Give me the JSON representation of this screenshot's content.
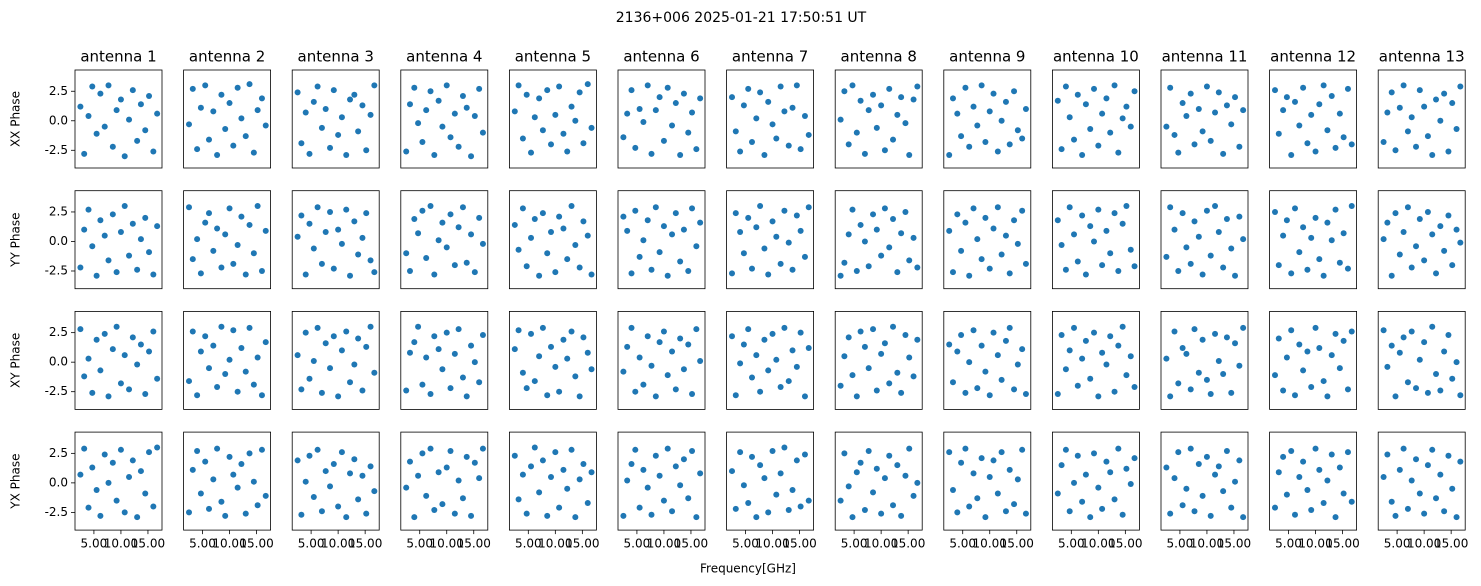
{
  "chart_data": {
    "type": "scatter",
    "title": "2136+006 2025-01-21 17:50:51 UT",
    "xlabel": "Frequency[GHz]",
    "columns": [
      "antenna 1",
      "antenna 2",
      "antenna 3",
      "antenna 4",
      "antenna 5",
      "antenna 6",
      "antenna 7",
      "antenna 8",
      "antenna 9",
      "antenna 10",
      "antenna 11",
      "antenna 12",
      "antenna 13"
    ],
    "rows": [
      "XX Phase",
      "YY Phase",
      "XY Phase",
      "YX Phase"
    ],
    "color": "#1f77b4",
    "xlim": [
      1.5,
      17.6
    ],
    "xticks": [
      {
        "value": 5,
        "label": "5.00"
      },
      {
        "value": 10,
        "label": "10.00"
      },
      {
        "value": 15,
        "label": "15.00"
      }
    ],
    "ylim": [
      -4.0,
      4.3
    ],
    "yticks": [
      -2.5,
      {
        "value": 0,
        "label": "0.0"
      },
      2.5
    ],
    "x": [
      2.5,
      3.2,
      4.0,
      4.7,
      5.5,
      6.2,
      7.0,
      7.7,
      8.5,
      9.2,
      10.0,
      10.7,
      11.5,
      12.2,
      13.0,
      13.7,
      14.5,
      15.2,
      16.0,
      16.7
    ],
    "panels": [
      [
        [
          1.2,
          -2.8,
          0.4,
          2.9,
          -1.1,
          2.3,
          -0.5,
          3.0,
          -2.2,
          0.9,
          1.8,
          -3.0,
          0.1,
          2.6,
          -1.7,
          1.4,
          -0.8,
          2.1,
          -2.6,
          0.6
        ],
        [
          -0.3,
          2.7,
          -2.4,
          1.1,
          3.0,
          -1.6,
          0.8,
          -2.9,
          2.2,
          -0.7,
          1.5,
          -2.1,
          2.8,
          0.2,
          -1.3,
          3.1,
          -2.7,
          0.9,
          1.9,
          -0.4
        ],
        [
          2.4,
          -1.9,
          0.7,
          -2.8,
          1.6,
          2.9,
          -0.6,
          1.0,
          -2.3,
          2.6,
          -1.2,
          0.3,
          -2.9,
          1.8,
          2.2,
          -0.9,
          1.3,
          -2.5,
          0.5,
          3.0
        ],
        [
          -2.6,
          1.4,
          2.8,
          -0.2,
          -1.8,
          0.9,
          2.5,
          -2.9,
          1.7,
          -0.5,
          3.0,
          -1.4,
          0.6,
          -2.2,
          2.1,
          1.1,
          -3.0,
          0.4,
          2.7,
          -1.0
        ],
        [
          0.8,
          3.0,
          -1.5,
          2.2,
          -2.7,
          0.3,
          1.9,
          -0.8,
          2.6,
          -2.0,
          0.5,
          2.9,
          -1.1,
          -2.6,
          1.2,
          0.0,
          2.4,
          -1.9,
          3.1,
          -0.6
        ],
        [
          -1.4,
          0.6,
          2.6,
          -2.3,
          1.0,
          -0.1,
          3.0,
          -2.8,
          0.9,
          2.0,
          -1.7,
          2.8,
          -0.4,
          1.5,
          -2.9,
          2.3,
          -1.0,
          0.7,
          -2.4,
          1.9
        ],
        [
          2.0,
          -0.9,
          -2.6,
          1.3,
          2.7,
          -1.8,
          0.2,
          2.4,
          -2.9,
          1.6,
          -0.3,
          -1.5,
          2.9,
          0.8,
          -2.1,
          1.1,
          3.0,
          -2.4,
          0.4,
          -1.2
        ],
        [
          0.1,
          2.5,
          -2.0,
          3.0,
          -1.0,
          1.7,
          -2.8,
          0.9,
          2.2,
          -0.6,
          1.3,
          -2.5,
          2.7,
          -1.6,
          0.5,
          2.0,
          -0.2,
          -2.9,
          1.8,
          2.9
        ],
        [
          -2.9,
          1.9,
          0.6,
          -1.3,
          2.8,
          -2.2,
          1.2,
          -0.4,
          3.0,
          -1.8,
          0.8,
          2.3,
          -2.6,
          0.0,
          1.6,
          -2.0,
          2.5,
          -0.8,
          -1.5,
          1.0
        ],
        [
          1.7,
          -2.4,
          2.9,
          0.3,
          -1.6,
          2.2,
          -2.9,
          1.4,
          -0.7,
          2.7,
          -2.1,
          0.6,
          1.9,
          -1.0,
          3.0,
          -2.7,
          0.2,
          1.2,
          -0.5,
          2.5
        ],
        [
          -0.5,
          2.8,
          -1.2,
          -2.7,
          1.5,
          0.4,
          2.3,
          -2.0,
          1.0,
          -0.9,
          2.9,
          -1.7,
          0.7,
          2.4,
          -2.8,
          1.3,
          -0.3,
          2.0,
          -2.2,
          0.9
        ],
        [
          2.6,
          -1.1,
          0.9,
          2.0,
          -2.9,
          1.6,
          -0.4,
          2.8,
          -1.9,
          0.5,
          -2.6,
          1.4,
          3.0,
          -0.8,
          2.1,
          -2.3,
          0.6,
          -1.4,
          2.7,
          -2.0
        ],
        [
          -1.8,
          0.7,
          2.4,
          -2.5,
          1.1,
          3.0,
          -0.9,
          0.3,
          -2.2,
          2.6,
          1.2,
          -1.3,
          -2.9,
          1.8,
          0.0,
          2.3,
          -2.6,
          1.5,
          -0.7,
          2.9
        ]
      ],
      [
        [
          -2.2,
          1.0,
          2.7,
          -0.4,
          -2.9,
          1.8,
          0.5,
          -1.6,
          2.3,
          -2.6,
          0.8,
          3.0,
          -1.2,
          1.5,
          -2.4,
          0.2,
          2.0,
          -0.9,
          -2.8,
          1.3
        ],
        [
          2.9,
          -1.5,
          0.2,
          -2.7,
          1.6,
          2.4,
          -0.8,
          1.1,
          -2.2,
          0.6,
          2.8,
          -1.9,
          -0.3,
          2.1,
          -2.8,
          1.4,
          -1.0,
          3.0,
          -2.5,
          0.9
        ],
        [
          0.4,
          2.2,
          -2.8,
          1.5,
          -0.6,
          2.9,
          -1.9,
          0.8,
          2.5,
          -2.3,
          1.0,
          -0.2,
          2.7,
          -2.9,
          1.7,
          -1.1,
          0.3,
          2.4,
          -1.6,
          -2.6
        ],
        [
          -1.0,
          -2.5,
          1.9,
          0.7,
          2.6,
          -1.4,
          3.0,
          -2.8,
          0.1,
          1.6,
          -0.5,
          2.3,
          -2.0,
          1.2,
          2.9,
          -1.8,
          0.6,
          -2.6,
          2.0,
          -0.2
        ],
        [
          1.4,
          -0.7,
          2.8,
          -2.1,
          0.3,
          1.9,
          -2.9,
          2.4,
          -1.0,
          0.8,
          -2.6,
          2.1,
          1.1,
          -1.5,
          3.0,
          -0.3,
          -2.2,
          1.7,
          0.5,
          -2.8
        ],
        [
          2.1,
          0.9,
          -2.7,
          2.6,
          -1.3,
          0.1,
          1.8,
          -2.4,
          2.9,
          -0.9,
          1.3,
          -2.9,
          0.6,
          2.4,
          -1.7,
          1.0,
          -2.5,
          2.8,
          -0.4,
          1.6
        ],
        [
          -2.7,
          2.4,
          0.8,
          -1.0,
          2.0,
          -2.3,
          1.2,
          3.0,
          -0.6,
          -2.8,
          1.7,
          0.4,
          -1.9,
          2.6,
          -0.1,
          -2.4,
          2.2,
          0.9,
          -1.3,
          2.9
        ],
        [
          -2.9,
          -1.8,
          0.6,
          2.7,
          -2.5,
          1.4,
          0.0,
          -2.1,
          2.3,
          1.0,
          -1.2,
          2.8,
          -0.5,
          1.9,
          -2.6,
          0.7,
          2.5,
          -1.6,
          0.3,
          -2.2
        ],
        [
          0.9,
          -2.6,
          2.3,
          -0.8,
          1.6,
          -2.9,
          2.8,
          0.2,
          -1.5,
          2.0,
          -2.3,
          1.1,
          2.9,
          -1.1,
          0.5,
          -2.7,
          1.8,
          -0.2,
          2.6,
          -1.9
        ],
        [
          1.8,
          -0.3,
          -2.4,
          2.9,
          0.6,
          -1.7,
          2.2,
          -2.8,
          1.3,
          0.0,
          2.7,
          -2.0,
          0.9,
          -1.0,
          2.4,
          -2.5,
          1.5,
          3.0,
          -0.7,
          -2.1
        ],
        [
          -1.3,
          2.9,
          1.0,
          -2.5,
          2.4,
          -0.5,
          -1.9,
          1.7,
          0.4,
          -2.8,
          2.6,
          -1.2,
          3.0,
          0.8,
          -2.2,
          1.9,
          -0.6,
          -2.9,
          2.1,
          0.2
        ],
        [
          2.5,
          -2.0,
          0.5,
          1.8,
          -2.7,
          2.8,
          -0.9,
          1.2,
          -2.4,
          0.3,
          2.0,
          -1.5,
          -2.9,
          1.6,
          0.1,
          2.7,
          -1.8,
          0.7,
          -2.3,
          3.0
        ],
        [
          0.2,
          1.6,
          -2.9,
          2.4,
          -1.1,
          0.8,
          2.9,
          -2.2,
          -0.4,
          1.9,
          -1.6,
          2.5,
          0.6,
          -2.7,
          1.3,
          -0.8,
          2.2,
          -2.0,
          1.0,
          -0.1
        ]
      ],
      [
        [
          2.8,
          -1.2,
          0.3,
          -2.6,
          1.9,
          -0.7,
          2.4,
          -2.9,
          1.1,
          3.0,
          -1.8,
          0.6,
          -2.3,
          2.1,
          -0.2,
          1.5,
          -2.7,
          0.9,
          2.6,
          -1.4
        ],
        [
          -1.6,
          2.6,
          -2.8,
          0.9,
          2.2,
          -0.5,
          1.4,
          -2.1,
          3.0,
          -1.0,
          0.2,
          2.7,
          -2.5,
          1.2,
          -0.8,
          2.9,
          -1.9,
          0.4,
          -2.8,
          1.7
        ],
        [
          0.6,
          -2.3,
          2.5,
          -1.4,
          0.1,
          2.9,
          -2.6,
          1.6,
          -0.5,
          2.2,
          -2.9,
          1.0,
          2.6,
          -1.7,
          -0.2,
          2.0,
          -2.4,
          1.3,
          3.0,
          -0.9
        ],
        [
          -2.4,
          0.8,
          1.7,
          3.0,
          -1.9,
          0.4,
          -2.7,
          2.2,
          1.1,
          -0.6,
          2.5,
          -2.2,
          0.7,
          2.8,
          -1.3,
          -2.9,
          1.4,
          0.0,
          -1.7,
          2.3
        ],
        [
          1.1,
          2.7,
          -0.9,
          -2.2,
          2.4,
          -1.6,
          0.5,
          2.9,
          -2.8,
          1.3,
          -0.4,
          -2.5,
          1.9,
          0.3,
          2.6,
          -1.2,
          -2.9,
          2.1,
          0.8,
          -0.6
        ],
        [
          -0.8,
          1.3,
          2.9,
          -2.5,
          0.4,
          -1.9,
          2.2,
          -0.3,
          -2.9,
          1.7,
          2.6,
          -1.1,
          0.9,
          -2.3,
          2.0,
          -0.6,
          1.5,
          -2.7,
          2.8,
          0.1
        ],
        [
          2.2,
          -2.8,
          -0.1,
          1.5,
          2.8,
          -1.3,
          0.6,
          -2.5,
          1.9,
          -0.7,
          2.4,
          0.2,
          -2.1,
          2.9,
          -1.6,
          1.0,
          -0.4,
          2.5,
          -2.9,
          1.2
        ],
        [
          -2.0,
          0.5,
          2.1,
          -1.1,
          -2.9,
          2.6,
          1.3,
          -0.5,
          2.8,
          -2.4,
          0.7,
          1.6,
          -1.8,
          3.0,
          -0.9,
          -2.6,
          2.3,
          0.4,
          -1.2,
          1.9
        ],
        [
          1.5,
          -1.7,
          0.9,
          2.3,
          -2.6,
          0.0,
          2.7,
          -2.2,
          1.4,
          -0.8,
          -2.8,
          2.5,
          0.6,
          -1.5,
          1.8,
          2.9,
          -2.3,
          -0.2,
          1.1,
          -2.7
        ],
        [
          -2.7,
          2.3,
          -0.6,
          1.0,
          2.9,
          -2.0,
          0.3,
          1.8,
          -1.4,
          2.5,
          -2.9,
          0.8,
          -0.2,
          2.2,
          -2.5,
          1.4,
          3.0,
          -1.1,
          0.5,
          -2.1
        ],
        [
          0.3,
          -2.9,
          2.6,
          -1.8,
          1.2,
          0.7,
          -2.3,
          2.8,
          -0.9,
          1.9,
          -1.5,
          -2.7,
          2.4,
          0.1,
          -1.0,
          2.1,
          -2.6,
          1.6,
          -0.3,
          2.9
        ],
        [
          -1.1,
          2.0,
          -2.4,
          0.4,
          2.7,
          -2.8,
          1.5,
          -0.7,
          0.9,
          -2.1,
          2.9,
          1.2,
          -1.6,
          -2.9,
          0.6,
          2.4,
          -0.5,
          1.8,
          -2.3,
          2.6
        ],
        [
          2.7,
          -0.4,
          1.4,
          -2.9,
          0.8,
          2.1,
          -1.7,
          2.6,
          -2.2,
          0.2,
          1.7,
          -2.6,
          3.0,
          -1.0,
          -2.4,
          0.9,
          2.3,
          -1.4,
          0.0,
          -2.8
        ]
      ],
      [
        [
          0.7,
          2.9,
          -2.1,
          1.3,
          -0.6,
          -2.8,
          2.4,
          0.0,
          1.7,
          -1.5,
          2.8,
          -2.5,
          0.5,
          1.9,
          -2.9,
          1.0,
          -0.9,
          2.6,
          -2.0,
          3.0
        ],
        [
          -2.5,
          1.1,
          2.7,
          -0.9,
          1.8,
          -2.2,
          0.3,
          2.9,
          -1.6,
          -2.8,
          2.2,
          0.7,
          -0.4,
          1.6,
          -2.6,
          2.5,
          0.1,
          -1.9,
          2.8,
          -1.1
        ],
        [
          1.9,
          -2.7,
          0.1,
          2.3,
          -1.2,
          2.8,
          -2.4,
          1.0,
          -0.3,
          1.6,
          -2.0,
          2.6,
          -2.9,
          0.8,
          2.0,
          -1.4,
          0.6,
          -2.6,
          1.4,
          -0.7
        ],
        [
          -0.4,
          1.8,
          -2.9,
          0.6,
          2.5,
          -1.1,
          2.9,
          -2.3,
          0.9,
          -1.8,
          1.3,
          2.7,
          -2.6,
          0.2,
          -1.3,
          2.2,
          -2.8,
          1.7,
          0.4,
          2.9
        ],
        [
          2.3,
          -1.4,
          0.7,
          -2.6,
          1.4,
          3.0,
          -0.8,
          1.9,
          -2.8,
          0.5,
          2.6,
          -2.1,
          1.1,
          -0.5,
          2.8,
          -2.9,
          0.3,
          1.6,
          -1.7,
          0.9
        ],
        [
          -2.8,
          0.2,
          1.6,
          2.8,
          -2.1,
          1.1,
          -0.4,
          -2.7,
          2.3,
          0.6,
          -1.5,
          2.9,
          -2.4,
          1.4,
          -0.2,
          2.0,
          -1.3,
          2.7,
          -2.9,
          0.8
        ],
        [
          1.0,
          -2.2,
          2.6,
          -0.2,
          -1.7,
          2.2,
          -2.9,
          1.5,
          0.4,
          -2.5,
          2.7,
          -1.0,
          0.8,
          3.0,
          -2.3,
          -0.6,
          1.9,
          -2.0,
          2.4,
          -1.5
        ],
        [
          -1.5,
          2.5,
          -0.3,
          -2.9,
          0.9,
          1.7,
          -2.3,
          2.7,
          -0.8,
          1.2,
          -2.6,
          0.4,
          2.3,
          -1.9,
          1.5,
          -2.8,
          0.6,
          2.9,
          -1.1,
          0.0
        ],
        [
          2.6,
          -0.6,
          -2.5,
          1.7,
          2.9,
          -2.0,
          0.8,
          -1.3,
          2.1,
          -2.9,
          0.5,
          1.9,
          -0.9,
          2.6,
          -2.4,
          1.1,
          -1.8,
          0.3,
          2.8,
          -2.6
        ],
        [
          -0.9,
          1.5,
          2.8,
          -2.4,
          0.0,
          2.3,
          -1.6,
          0.7,
          -2.9,
          2.5,
          -0.4,
          -2.2,
          1.8,
          0.9,
          -1.4,
          2.9,
          -2.7,
          1.2,
          -0.1,
          2.1
        ],
        [
          1.3,
          -2.6,
          0.4,
          2.6,
          -1.9,
          -0.5,
          2.9,
          -2.4,
          1.6,
          -1.1,
          2.2,
          -2.8,
          0.7,
          1.4,
          -0.7,
          2.7,
          -2.1,
          0.1,
          1.9,
          -2.9
        ],
        [
          -2.1,
          0.9,
          2.2,
          -1.0,
          2.7,
          -2.7,
          0.5,
          1.8,
          -0.6,
          -2.3,
          2.9,
          1.1,
          -1.7,
          0.2,
          2.4,
          -2.9,
          1.3,
          -0.9,
          2.6,
          -1.6
        ],
        [
          0.5,
          2.4,
          -1.6,
          -2.8,
          1.1,
          2.9,
          -2.2,
          0.2,
          2.0,
          -0.9,
          -2.6,
          1.5,
          2.8,
          -1.3,
          0.7,
          -2.4,
          2.3,
          -0.5,
          -2.9,
          1.8
        ]
      ]
    ]
  }
}
